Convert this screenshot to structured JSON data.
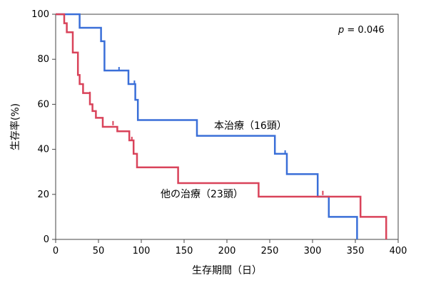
{
  "chart_data": {
    "type": "line",
    "subtype": "kaplan-meier",
    "xlabel": "生存期間（日）",
    "ylabel": "生存率(%)",
    "xlim": [
      0,
      400
    ],
    "ylim": [
      0,
      100
    ],
    "xticks": [
      0,
      50,
      100,
      150,
      200,
      250,
      300,
      350,
      400
    ],
    "yticks": [
      0,
      20,
      40,
      60,
      80,
      100
    ],
    "grid": false,
    "p_label": {
      "italic": "p",
      "rest": " = 0.046"
    },
    "series": [
      {
        "name": "本治療（16頭）",
        "color": "#3a6fd8",
        "x": [
          0,
          28,
          28,
          53,
          53,
          57,
          57,
          85,
          85,
          93,
          93,
          96,
          96,
          165,
          165,
          256,
          256,
          270,
          270,
          306,
          306,
          319,
          319,
          352,
          352
        ],
        "y": [
          100,
          100,
          94,
          94,
          88,
          88,
          75,
          75,
          69,
          69,
          62,
          62,
          53,
          53,
          46,
          46,
          38,
          38,
          29,
          29,
          19,
          19,
          10,
          10,
          0
        ],
        "censored": [
          [
            74,
            75
          ],
          [
            92,
            69
          ],
          [
            268,
            38
          ]
        ]
      },
      {
        "name": "他の治療（23頭）",
        "color": "#d9435a",
        "x": [
          0,
          10,
          10,
          13,
          13,
          20,
          20,
          26,
          26,
          28,
          28,
          32,
          32,
          40,
          40,
          43,
          43,
          47,
          47,
          55,
          55,
          72,
          72,
          86,
          86,
          91,
          91,
          95,
          95,
          143,
          143,
          237,
          237,
          356,
          356,
          386,
          386
        ],
        "y": [
          100,
          100,
          96,
          96,
          92,
          92,
          83,
          83,
          73,
          73,
          69,
          69,
          65,
          65,
          60,
          60,
          57,
          57,
          54,
          54,
          50,
          50,
          48,
          48,
          44,
          44,
          38,
          38,
          32,
          32,
          25,
          25,
          19,
          19,
          10,
          10,
          0
        ],
        "censored": [
          [
            10,
            98
          ],
          [
            40,
            64
          ],
          [
            67,
            51
          ],
          [
            89,
            44
          ],
          [
            312,
            20
          ]
        ]
      }
    ],
    "annotations": [
      {
        "text": "本治療（16頭）",
        "series": 0
      },
      {
        "text": "他の治療（23頭）",
        "series": 1
      }
    ]
  }
}
